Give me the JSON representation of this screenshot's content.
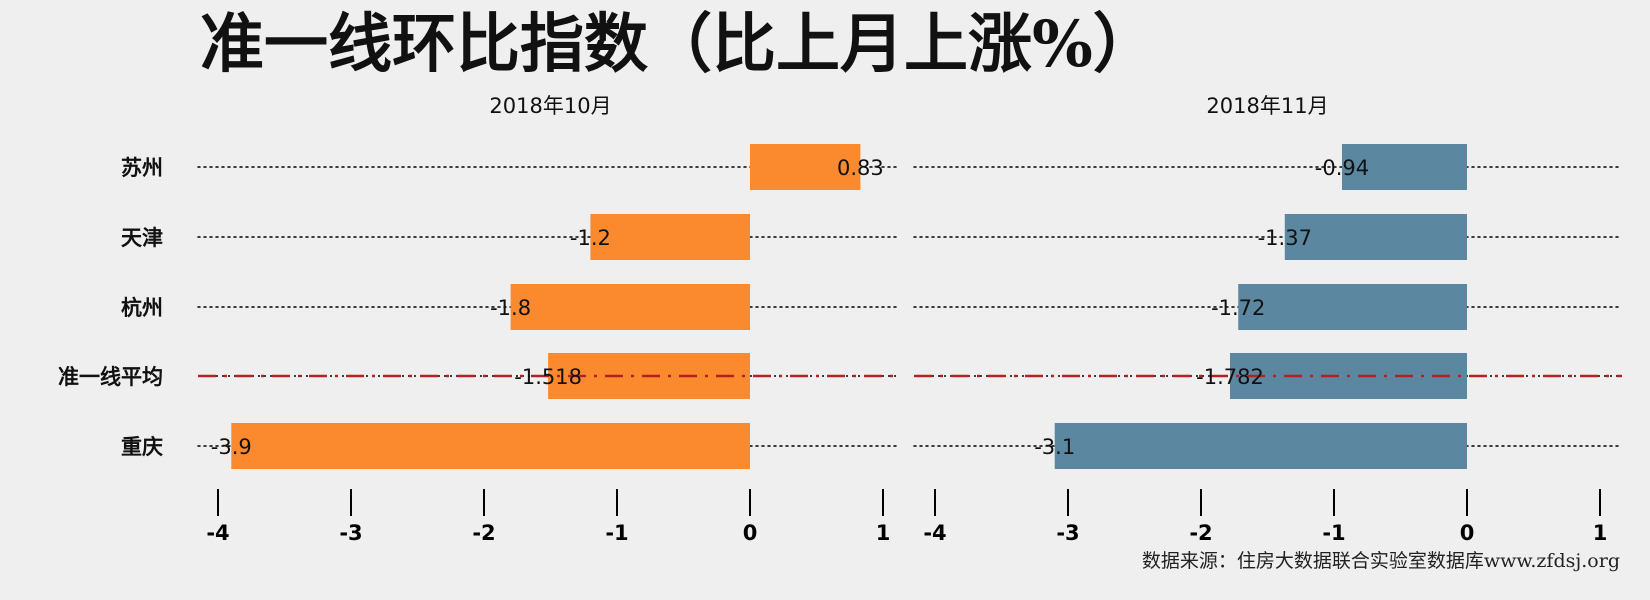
{
  "title": "准一线环比指数（比上月上涨%）",
  "source": "数据来源：住房大数据联合实验室数据库www.zfdsj.org",
  "chart_data": {
    "type": "bar",
    "orientation": "horizontal",
    "categories": [
      "苏州",
      "天津",
      "杭州",
      "准一线平均",
      "重庆"
    ],
    "reference_category": "准一线平均",
    "xlim": [
      -4,
      1
    ],
    "xticks": [
      -4,
      -3,
      -2,
      -1,
      0,
      1
    ],
    "panels": [
      {
        "title": "2018年10月",
        "values": [
          0.83,
          -1.2,
          -1.8,
          -1.518,
          -3.9
        ],
        "labels": [
          "0.83",
          "-1.2",
          "-1.8",
          "-1.518",
          "-3.9"
        ],
        "color": "#fb8a2e"
      },
      {
        "title": "2018年11月",
        "values": [
          -0.94,
          -1.37,
          -1.72,
          -1.782,
          -3.1
        ],
        "labels": [
          "-0.94",
          "-1.37",
          "-1.72",
          "-1.782",
          "-3.1"
        ],
        "color": "#5b88a0"
      }
    ],
    "reference_line_color": "#b22222",
    "grid": "dotted"
  }
}
